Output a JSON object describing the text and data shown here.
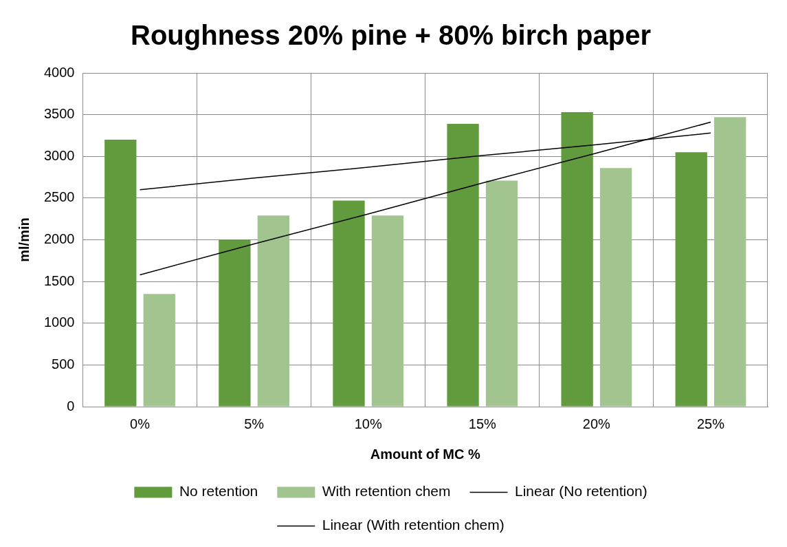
{
  "chart_data": {
    "type": "bar",
    "title": "Roughness 20% pine + 80% birch paper",
    "xlabel": "Amount of MC %",
    "ylabel": "ml/min",
    "categories": [
      "0%",
      "5%",
      "10%",
      "15%",
      "20%",
      "25%"
    ],
    "series": [
      {
        "name": "No retention",
        "color": "#629a3e",
        "values": [
          3200,
          2000,
          2470,
          3390,
          3530,
          3050
        ]
      },
      {
        "name": "With retention chem",
        "color": "#a2c48f",
        "values": [
          1350,
          2290,
          2290,
          2710,
          2860,
          3470
        ]
      },
      {
        "name": "Linear (No retention)",
        "type": "line",
        "color": "#000000",
        "values": [
          2600,
          2740,
          2870,
          3010,
          3140,
          3280
        ]
      },
      {
        "name": "Linear (With retention chem)",
        "type": "line",
        "color": "#000000",
        "values": [
          1580,
          1950,
          2310,
          2680,
          3040,
          3410
        ]
      }
    ],
    "ylim": [
      0,
      4000
    ],
    "yticks": [
      0,
      500,
      1000,
      1500,
      2000,
      2500,
      3000,
      3500,
      4000
    ],
    "grid": true,
    "legend": "bottom",
    "marker": "none",
    "line_style": "solid"
  }
}
